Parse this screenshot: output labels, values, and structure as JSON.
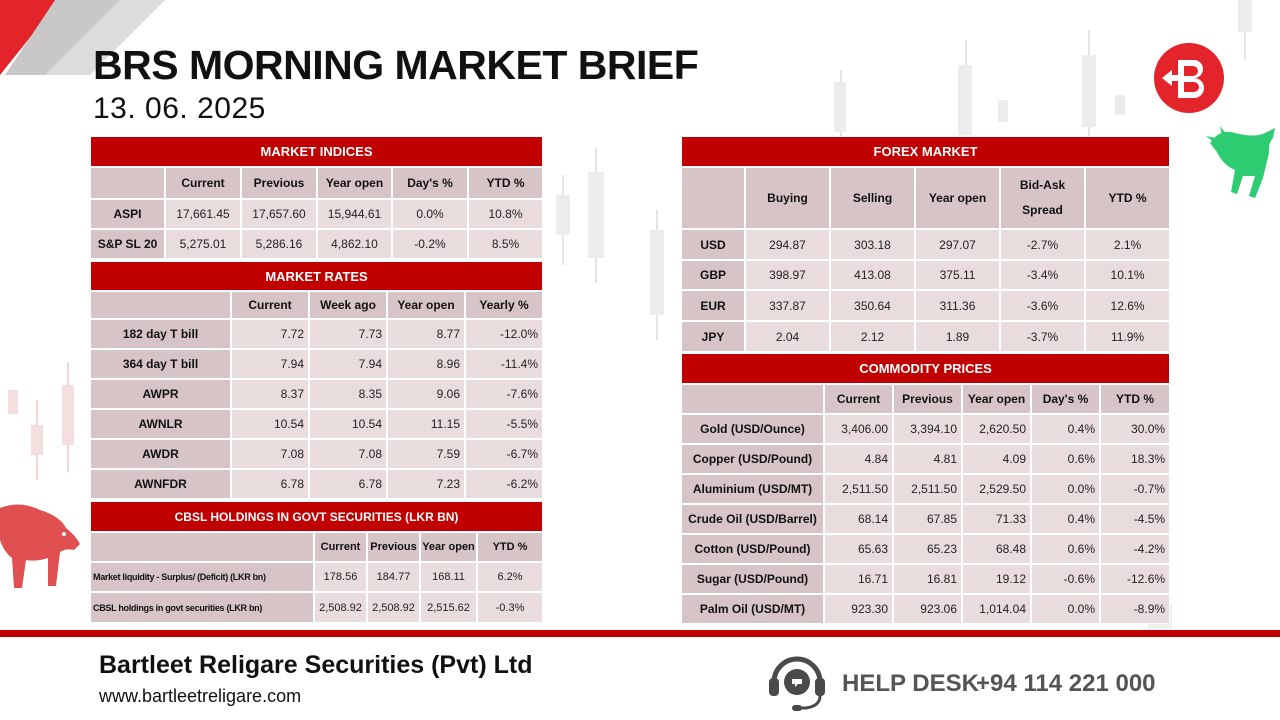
{
  "title": "BRS MORNING MARKET BRIEF",
  "date": "13. 06. 2025",
  "colors": {
    "accent": "#c00000",
    "header_cell": "#d7c4c6",
    "value_cell": "#e9dcdd",
    "bull": "#2ecc71",
    "bear": "#e05050"
  },
  "icons": {
    "logo": "brs-logo-icon",
    "bull": "bull-icon",
    "bear": "bear-icon",
    "helpdesk": "headset-icon"
  },
  "market_indices": {
    "title": "MARKET INDICES",
    "columns": [
      "Current",
      "Previous",
      "Year open",
      "Day's %",
      "YTD %"
    ],
    "rows": [
      {
        "label": "ASPI",
        "values": [
          "17,661.45",
          "17,657.60",
          "15,944.61",
          "0.0%",
          "10.8%"
        ]
      },
      {
        "label": "S&P SL 20",
        "values": [
          "5,275.01",
          "5,286.16",
          "4,862.10",
          "-0.2%",
          "8.5%"
        ]
      }
    ]
  },
  "market_rates": {
    "title": "MARKET RATES",
    "columns": [
      "Current",
      "Week ago",
      "Year open",
      "Yearly %"
    ],
    "rows": [
      {
        "label": "182 day T bill",
        "values": [
          "7.72",
          "7.73",
          "8.77",
          "-12.0%"
        ]
      },
      {
        "label": "364 day T bill",
        "values": [
          "7.94",
          "7.94",
          "8.96",
          "-11.4%"
        ]
      },
      {
        "label": "AWPR",
        "values": [
          "8.37",
          "8.35",
          "9.06",
          "-7.6%"
        ]
      },
      {
        "label": "AWNLR",
        "values": [
          "10.54",
          "10.54",
          "11.15",
          "-5.5%"
        ]
      },
      {
        "label": "AWDR",
        "values": [
          "7.08",
          "7.08",
          "7.59",
          "-6.7%"
        ]
      },
      {
        "label": "AWNFDR",
        "values": [
          "6.78",
          "6.78",
          "7.23",
          "-6.2%"
        ]
      }
    ]
  },
  "cbsl_holdings": {
    "title": "CBSL HOLDINGS IN GOVT SECURITIES (LKR BN)",
    "columns": [
      "Current",
      "Previous",
      "Year open",
      "YTD %"
    ],
    "rows": [
      {
        "label": "Market liquidity - Surplus/ (Deficit) (LKR bn)",
        "values": [
          "178.56",
          "184.77",
          "168.11",
          "6.2%"
        ]
      },
      {
        "label": "CBSL holdings in govt securities (LKR bn)",
        "values": [
          "2,508.92",
          "2,508.92",
          "2,515.62",
          "-0.3%"
        ]
      }
    ]
  },
  "forex_market": {
    "title": "FOREX MARKET",
    "columns": [
      "Buying",
      "Selling",
      "Year open",
      "Bid-Ask Spread",
      "YTD %"
    ],
    "rows": [
      {
        "label": "USD",
        "values": [
          "294.87",
          "303.18",
          "297.07",
          "-2.7%",
          "2.1%"
        ]
      },
      {
        "label": "GBP",
        "values": [
          "398.97",
          "413.08",
          "375.11",
          "-3.4%",
          "10.1%"
        ]
      },
      {
        "label": "EUR",
        "values": [
          "337.87",
          "350.64",
          "311.36",
          "-3.6%",
          "12.6%"
        ]
      },
      {
        "label": "JPY",
        "values": [
          "2.04",
          "2.12",
          "1.89",
          "-3.7%",
          "11.9%"
        ]
      }
    ]
  },
  "commodity_prices": {
    "title": "COMMODITY PRICES",
    "columns": [
      "Current",
      "Previous",
      "Year open",
      "Day's %",
      "YTD %"
    ],
    "rows": [
      {
        "label": "Gold (USD/Ounce)",
        "values": [
          "3,406.00",
          "3,394.10",
          "2,620.50",
          "0.4%",
          "30.0%"
        ]
      },
      {
        "label": "Copper (USD/Pound)",
        "values": [
          "4.84",
          "4.81",
          "4.09",
          "0.6%",
          "18.3%"
        ]
      },
      {
        "label": "Aluminium (USD/MT)",
        "values": [
          "2,511.50",
          "2,511.50",
          "2,529.50",
          "0.0%",
          "-0.7%"
        ]
      },
      {
        "label": "Crude Oil (USD/Barrel)",
        "values": [
          "68.14",
          "67.85",
          "71.33",
          "0.4%",
          "-4.5%"
        ]
      },
      {
        "label": "Cotton (USD/Pound)",
        "values": [
          "65.63",
          "65.23",
          "68.48",
          "0.6%",
          "-4.2%"
        ]
      },
      {
        "label": "Sugar (USD/Pound)",
        "values": [
          "16.71",
          "16.81",
          "19.12",
          "-0.6%",
          "-12.6%"
        ]
      },
      {
        "label": "Palm Oil (USD/MT)",
        "values": [
          "923.30",
          "923.06",
          "1,014.04",
          "0.0%",
          "-8.9%"
        ]
      }
    ]
  },
  "footer": {
    "company": "Bartleet Religare Securities (Pvt) Ltd",
    "website": "www.bartleetreligare.com",
    "helpdesk_label": "HELP DESK",
    "phone": "+94 114 221 000"
  }
}
